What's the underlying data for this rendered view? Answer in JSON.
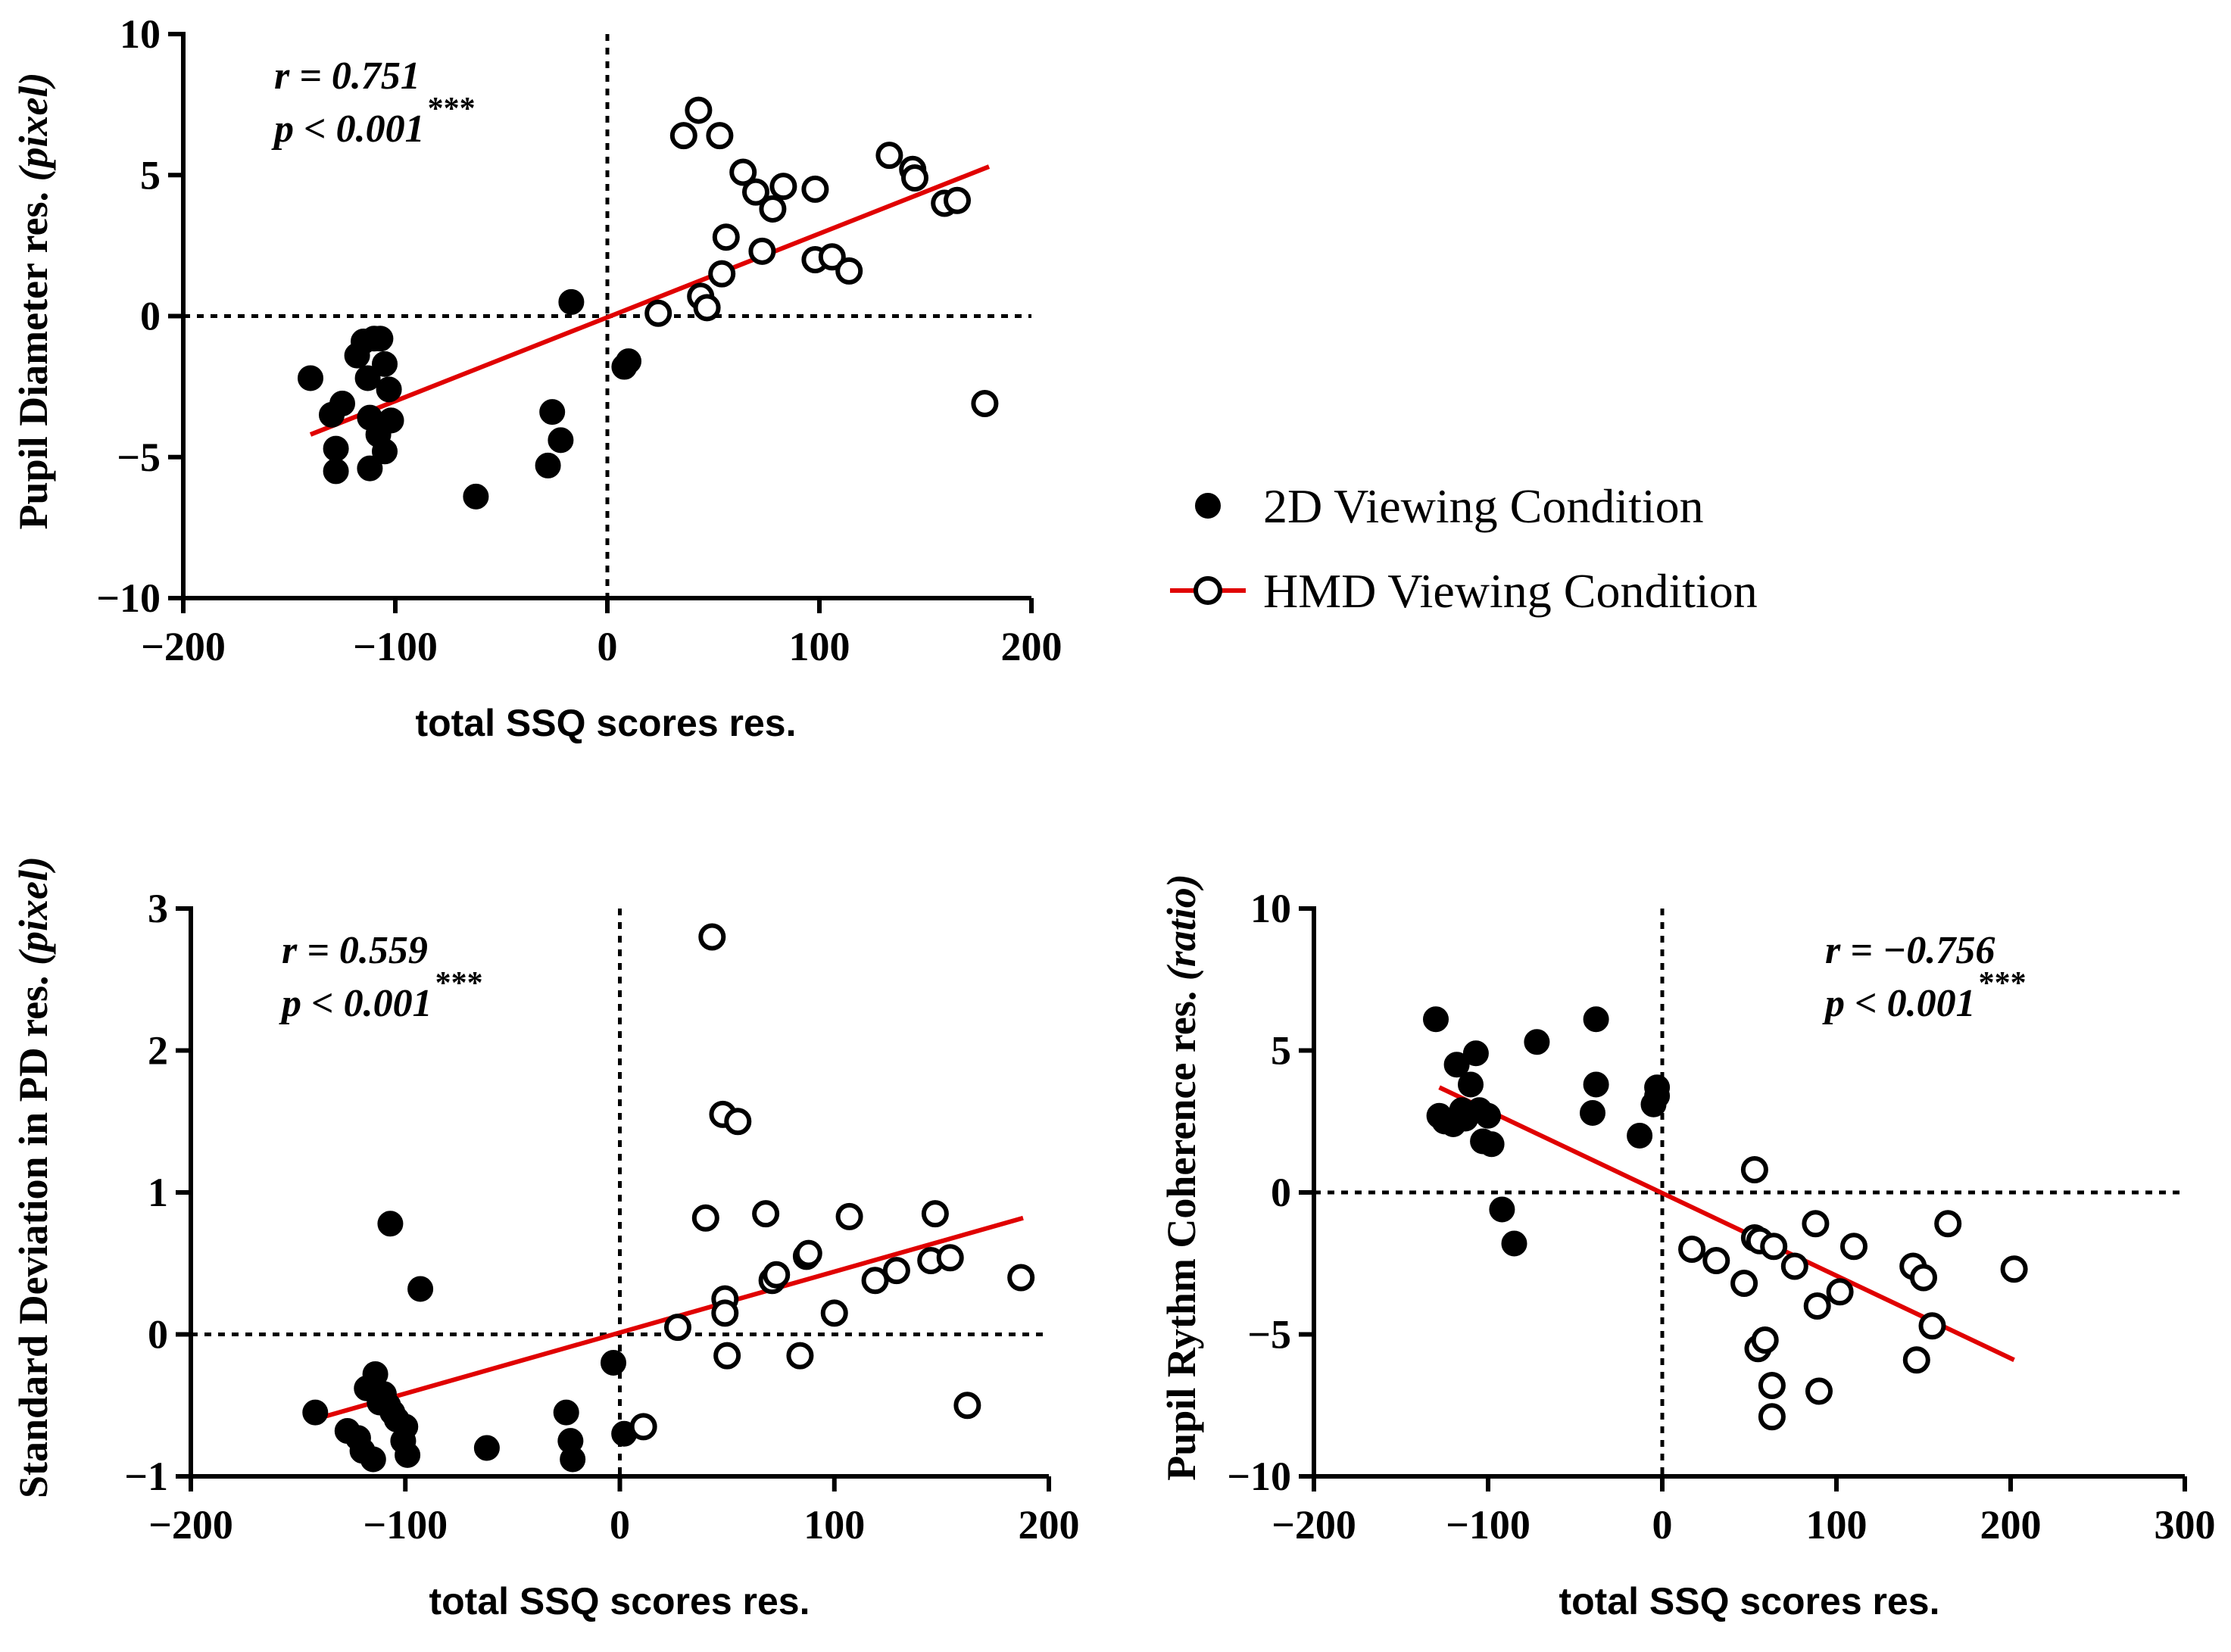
{
  "colors": {
    "fit_line": "#e00000",
    "markers": "#000000",
    "background": "#ffffff"
  },
  "legend": {
    "items": [
      {
        "label": "2D Viewing Condition",
        "marker": "filled-circle"
      },
      {
        "label": "HMD Viewing Condition",
        "marker": "open-circle-with-red-line"
      }
    ]
  },
  "chart_data": [
    {
      "id": "pd",
      "type": "scatter",
      "xlabel": "total SSQ scores res.",
      "ylabel_main": "Pupil Diameter res.",
      "ylabel_unit": "(pixel)",
      "xlim": [
        -200,
        200
      ],
      "ylim": [
        -10,
        10
      ],
      "xticks": [
        -200,
        -100,
        0,
        100,
        200
      ],
      "yticks": [
        -10,
        -5,
        0,
        5,
        10
      ],
      "stat_r": "r = 0.751",
      "stat_p": "p < 0.001",
      "stat_stars": "***",
      "stat_position": "top-left",
      "fit_line": {
        "x": [
          -140,
          180
        ],
        "y": [
          -4.2,
          5.3
        ]
      },
      "series": [
        {
          "name": "2D Viewing Condition",
          "marker": "filled",
          "x": [
            -140,
            -130,
            -128,
            -128,
            -125,
            -118,
            -115,
            -113,
            -112,
            -112,
            -110,
            -108,
            -107,
            -105,
            -105,
            -103,
            -102,
            -102,
            -62,
            -28,
            -26,
            -22,
            -17,
            8,
            10
          ],
          "y": [
            -2.2,
            -3.5,
            -4.7,
            -5.5,
            -3.1,
            -1.4,
            -0.9,
            -2.2,
            -3.6,
            -5.4,
            -0.8,
            -4.2,
            -0.8,
            -1.7,
            -4.8,
            -2.6,
            -3.7,
            -3.7,
            -6.4,
            -5.3,
            -3.4,
            -4.4,
            0.5,
            -1.8,
            -1.6
          ]
        },
        {
          "name": "HMD Viewing Condition",
          "marker": "open",
          "x": [
            24,
            36,
            43,
            44,
            47,
            53,
            54,
            56,
            64,
            70,
            73,
            78,
            83,
            98,
            98,
            106,
            114,
            133,
            144,
            145,
            159,
            165,
            178
          ],
          "y": [
            0.1,
            6.4,
            7.3,
            0.7,
            0.3,
            6.4,
            1.5,
            2.8,
            5.1,
            4.4,
            2.3,
            3.8,
            4.6,
            4.5,
            2.0,
            2.1,
            1.6,
            5.7,
            5.2,
            4.9,
            4.0,
            4.1,
            -3.1
          ]
        }
      ]
    },
    {
      "id": "sdpd",
      "type": "scatter",
      "xlabel": "total SSQ scores res.",
      "ylabel_main": "Standard Deviation in PD res.",
      "ylabel_unit": "(pixel)",
      "xlim": [
        -200,
        200
      ],
      "ylim": [
        -1,
        3
      ],
      "xticks": [
        -200,
        -100,
        0,
        100,
        200
      ],
      "yticks": [
        -1,
        0,
        1,
        2,
        3
      ],
      "stat_r": "r = 0.559",
      "stat_p": "p < 0.001",
      "stat_stars": "***",
      "stat_position": "top-left",
      "fit_line": {
        "x": [
          -138,
          188
        ],
        "y": [
          -0.58,
          0.82
        ]
      },
      "series": [
        {
          "name": "2D Viewing Condition",
          "marker": "filled",
          "x": [
            -142,
            -127,
            -122,
            -120,
            -118,
            -115,
            -114,
            -112,
            -110,
            -108,
            -107,
            -106,
            -104,
            -101,
            -100,
            -99,
            -93,
            -62,
            -25,
            -23,
            -22,
            -3,
            2
          ],
          "y": [
            -0.55,
            -0.68,
            -0.73,
            -0.82,
            -0.38,
            -0.88,
            -0.28,
            -0.48,
            -0.42,
            -0.5,
            0.78,
            -0.55,
            -0.6,
            -0.75,
            -0.65,
            -0.85,
            0.32,
            -0.8,
            -0.55,
            -0.75,
            -0.88,
            -0.2,
            -0.7
          ]
        },
        {
          "name": "HMD Viewing Condition",
          "marker": "open",
          "x": [
            11,
            27,
            40,
            43,
            48,
            49,
            49,
            50,
            55,
            68,
            71,
            73,
            84,
            87,
            88,
            100,
            107,
            119,
            129,
            145,
            147,
            154,
            162,
            187
          ],
          "y": [
            -0.65,
            0.05,
            0.82,
            2.8,
            1.55,
            0.25,
            0.15,
            -0.15,
            1.5,
            0.85,
            0.38,
            0.42,
            -0.15,
            0.55,
            0.57,
            0.15,
            0.83,
            0.38,
            0.45,
            0.52,
            0.85,
            0.54,
            -0.5,
            0.4
          ]
        }
      ]
    },
    {
      "id": "prc",
      "type": "scatter",
      "xlabel": "total SSQ scores res.",
      "ylabel_main": "Pupil Rythm Coherence res.",
      "ylabel_unit": "(ratio)",
      "xlim": [
        -200,
        300
      ],
      "ylim": [
        -10,
        10
      ],
      "xticks": [
        -200,
        -100,
        0,
        100,
        200,
        300
      ],
      "yticks": [
        -10,
        -5,
        0,
        5,
        10
      ],
      "stat_r": "r = −0.756",
      "stat_p": "p < 0.001",
      "stat_stars": "***",
      "stat_position": "top-right",
      "fit_line": {
        "x": [
          -128,
          202
        ],
        "y": [
          3.7,
          -5.9
        ]
      },
      "series": [
        {
          "name": "2D Viewing Condition",
          "marker": "filled",
          "x": [
            -130,
            -128,
            -125,
            -120,
            -118,
            -115,
            -113,
            -110,
            -107,
            -105,
            -103,
            -100,
            -98,
            -92,
            -85,
            -72,
            -40,
            -38,
            -38,
            -13,
            -5,
            -3,
            -3
          ],
          "y": [
            6.1,
            2.7,
            2.5,
            2.4,
            4.5,
            2.9,
            2.6,
            3.8,
            4.9,
            2.9,
            1.8,
            2.7,
            1.7,
            -0.6,
            -1.8,
            5.3,
            2.8,
            3.8,
            6.1,
            2.0,
            3.1,
            3.4,
            3.7
          ]
        },
        {
          "name": "HMD Viewing Condition",
          "marker": "open",
          "x": [
            17,
            31,
            47,
            53,
            53,
            55,
            56,
            59,
            63,
            63,
            64,
            76,
            88,
            89,
            90,
            102,
            110,
            144,
            146,
            150,
            155,
            164,
            202
          ],
          "y": [
            -2.0,
            -2.4,
            -3.2,
            0.8,
            -1.6,
            -5.5,
            -1.7,
            -5.2,
            -6.8,
            -7.9,
            -1.9,
            -2.6,
            -1.1,
            -4.0,
            -7.0,
            -3.5,
            -1.9,
            -2.6,
            -5.9,
            -3.0,
            -4.7,
            -1.1,
            -2.7
          ]
        }
      ]
    }
  ]
}
